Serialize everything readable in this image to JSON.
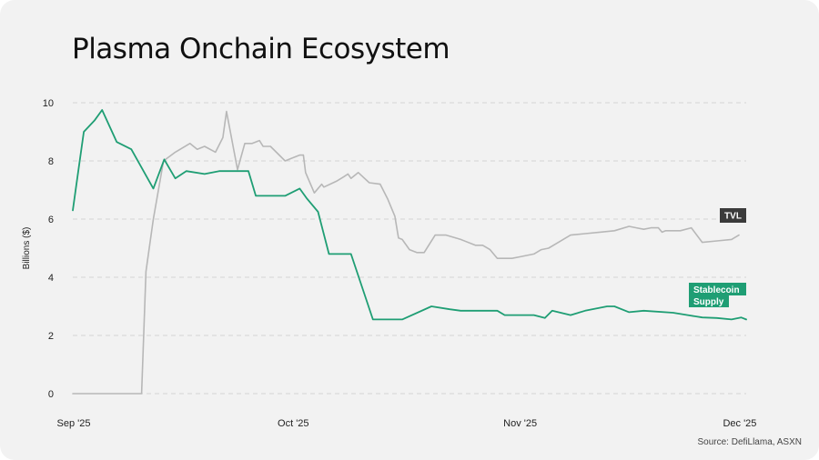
{
  "title": "Plasma Onchain Ecosystem",
  "source": "Source: DefiLlama, ASXN",
  "colors": {
    "tvl": "#b7b7b7",
    "stablecoin": "#1f9e74",
    "tvl_tag_bg": "#3b3b3b",
    "stablecoin_tag_bg": "#1f9e74",
    "grid": "#d4d4d4",
    "background": "#f2f2f2"
  },
  "chart_data": {
    "type": "line",
    "ylabel": "Billions ($)",
    "ylim": [
      0,
      10
    ],
    "yticks": [
      0,
      2,
      4,
      6,
      8,
      10
    ],
    "xlim_days": [
      0,
      92
    ],
    "xticks": [
      {
        "label": "Sep '25",
        "day": 0
      },
      {
        "label": "Oct '25",
        "day": 30
      },
      {
        "label": "Nov '25",
        "day": 61
      },
      {
        "label": "Dec '25",
        "day": 91
      }
    ],
    "grid": true,
    "series": [
      {
        "name": "TVL",
        "label": "TVL",
        "points": [
          [
            0,
            0
          ],
          [
            4,
            0
          ],
          [
            8,
            0
          ],
          [
            9.4,
            0
          ],
          [
            10,
            4.2
          ],
          [
            11,
            6.0
          ],
          [
            12.4,
            8.0
          ],
          [
            14,
            8.3
          ],
          [
            16,
            8.6
          ],
          [
            17,
            8.4
          ],
          [
            18,
            8.5
          ],
          [
            19.5,
            8.3
          ],
          [
            20.5,
            8.8
          ],
          [
            21,
            9.7
          ],
          [
            22.5,
            7.7
          ],
          [
            23.5,
            8.6
          ],
          [
            24.5,
            8.6
          ],
          [
            25.5,
            8.7
          ],
          [
            26,
            8.5
          ],
          [
            27,
            8.5
          ],
          [
            29,
            8.0
          ],
          [
            30,
            8.1
          ],
          [
            31,
            8.2
          ],
          [
            31.5,
            8.2
          ],
          [
            31.8,
            7.6
          ],
          [
            33,
            6.9
          ],
          [
            34,
            7.2
          ],
          [
            34.3,
            7.1
          ],
          [
            36,
            7.3
          ],
          [
            37,
            7.45
          ],
          [
            37.6,
            7.55
          ],
          [
            38,
            7.4
          ],
          [
            39,
            7.6
          ],
          [
            40.5,
            7.25
          ],
          [
            42,
            7.2
          ],
          [
            43,
            6.7
          ],
          [
            44,
            6.1
          ],
          [
            44.5,
            5.35
          ],
          [
            45,
            5.3
          ],
          [
            46,
            4.95
          ],
          [
            47,
            4.85
          ],
          [
            48,
            4.85
          ],
          [
            49.5,
            5.45
          ],
          [
            51,
            5.45
          ],
          [
            53,
            5.3
          ],
          [
            55,
            5.1
          ],
          [
            56,
            5.1
          ],
          [
            57,
            4.95
          ],
          [
            58,
            4.65
          ],
          [
            60,
            4.65
          ],
          [
            61,
            4.7
          ],
          [
            63,
            4.8
          ],
          [
            64,
            4.95
          ],
          [
            65,
            5.0
          ],
          [
            66,
            5.15
          ],
          [
            68,
            5.45
          ],
          [
            70,
            5.5
          ],
          [
            72,
            5.55
          ],
          [
            74,
            5.6
          ],
          [
            76,
            5.75
          ],
          [
            77,
            5.7
          ],
          [
            78,
            5.65
          ],
          [
            79,
            5.7
          ],
          [
            80,
            5.7
          ],
          [
            80.5,
            5.55
          ],
          [
            81,
            5.6
          ],
          [
            82,
            5.6
          ],
          [
            83,
            5.6
          ],
          [
            84.5,
            5.7
          ],
          [
            86,
            5.2
          ],
          [
            88,
            5.25
          ],
          [
            90,
            5.3
          ],
          [
            91,
            5.45
          ]
        ]
      },
      {
        "name": "Stablecoin Supply",
        "label_lines": [
          "Stablecoin",
          "Supply"
        ],
        "points": [
          [
            0,
            6.3
          ],
          [
            0.5,
            7.2
          ],
          [
            1.5,
            9.0
          ],
          [
            3,
            9.4
          ],
          [
            4,
            9.75
          ],
          [
            6,
            8.65
          ],
          [
            8,
            8.4
          ],
          [
            11,
            7.05
          ],
          [
            12.5,
            8.05
          ],
          [
            14,
            7.4
          ],
          [
            15.5,
            7.65
          ],
          [
            18,
            7.55
          ],
          [
            20,
            7.65
          ],
          [
            24,
            7.65
          ],
          [
            25,
            6.8
          ],
          [
            29,
            6.8
          ],
          [
            31,
            7.05
          ],
          [
            32,
            6.7
          ],
          [
            33.5,
            6.25
          ],
          [
            35,
            4.8
          ],
          [
            38,
            4.8
          ],
          [
            41,
            2.55
          ],
          [
            45,
            2.55
          ],
          [
            49,
            3.0
          ],
          [
            51.5,
            2.9
          ],
          [
            53,
            2.85
          ],
          [
            58,
            2.85
          ],
          [
            59,
            2.7
          ],
          [
            63,
            2.7
          ],
          [
            64.5,
            2.6
          ],
          [
            65.5,
            2.85
          ],
          [
            68,
            2.7
          ],
          [
            70,
            2.85
          ],
          [
            73,
            3.0
          ],
          [
            74,
            3.0
          ],
          [
            76,
            2.8
          ],
          [
            78,
            2.85
          ],
          [
            82,
            2.78
          ],
          [
            84,
            2.7
          ],
          [
            86,
            2.62
          ],
          [
            88,
            2.6
          ],
          [
            90,
            2.55
          ],
          [
            91.3,
            2.62
          ],
          [
            92,
            2.55
          ]
        ]
      }
    ]
  }
}
